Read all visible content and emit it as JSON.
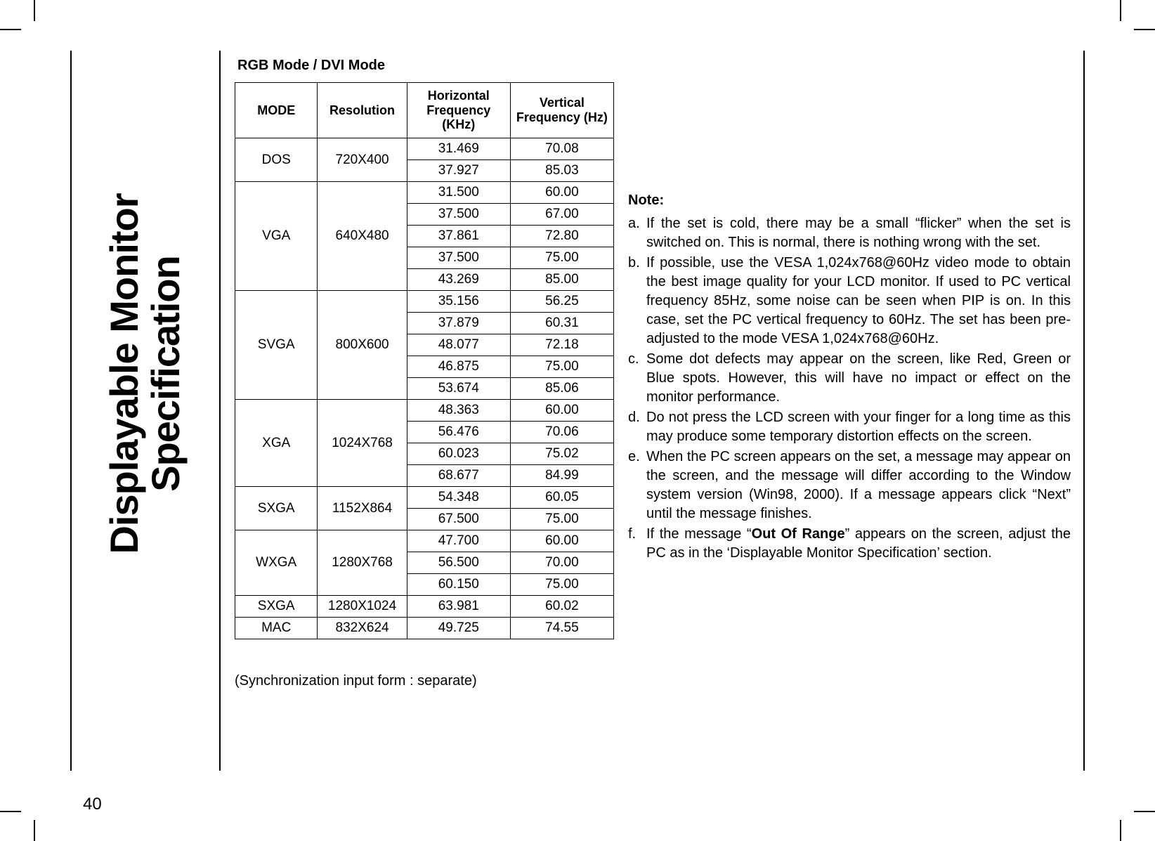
{
  "page_number": "40",
  "title_line1": "Displayable Monitor",
  "title_line2": "Specification",
  "table_section_title": "RGB Mode / DVI Mode",
  "table_headers": {
    "mode": "MODE",
    "resolution": "Resolution",
    "hfreq_line1": "Horizontal",
    "hfreq_line2": "Frequency (KHz)",
    "vfreq_line1": "Vertical",
    "vfreq_line2": "Frequency (Hz)"
  },
  "table_groups": [
    {
      "mode": "DOS",
      "resolution": "720X400",
      "rows": [
        {
          "hf": "31.469",
          "vf": "70.08"
        },
        {
          "hf": "37.927",
          "vf": "85.03"
        }
      ]
    },
    {
      "mode": "VGA",
      "resolution": "640X480",
      "rows": [
        {
          "hf": "31.500",
          "vf": "60.00"
        },
        {
          "hf": "37.500",
          "vf": "67.00"
        },
        {
          "hf": "37.861",
          "vf": "72.80"
        },
        {
          "hf": "37.500",
          "vf": "75.00"
        },
        {
          "hf": "43.269",
          "vf": "85.00"
        }
      ]
    },
    {
      "mode": "SVGA",
      "resolution": "800X600",
      "rows": [
        {
          "hf": "35.156",
          "vf": "56.25"
        },
        {
          "hf": "37.879",
          "vf": "60.31"
        },
        {
          "hf": "48.077",
          "vf": "72.18"
        },
        {
          "hf": "46.875",
          "vf": "75.00"
        },
        {
          "hf": "53.674",
          "vf": "85.06"
        }
      ]
    },
    {
      "mode": "XGA",
      "resolution": "1024X768",
      "rows": [
        {
          "hf": "48.363",
          "vf": "60.00"
        },
        {
          "hf": "56.476",
          "vf": "70.06"
        },
        {
          "hf": "60.023",
          "vf": "75.02"
        },
        {
          "hf": "68.677",
          "vf": "84.99"
        }
      ]
    },
    {
      "mode": "SXGA",
      "resolution": "1152X864",
      "rows": [
        {
          "hf": "54.348",
          "vf": "60.05"
        },
        {
          "hf": "67.500",
          "vf": "75.00"
        }
      ]
    },
    {
      "mode": "WXGA",
      "resolution": "1280X768",
      "rows": [
        {
          "hf": "47.700",
          "vf": "60.00"
        },
        {
          "hf": "56.500",
          "vf": "70.00"
        },
        {
          "hf": "60.150",
          "vf": "75.00"
        }
      ]
    },
    {
      "mode": "SXGA",
      "resolution": "1280X1024",
      "rows": [
        {
          "hf": "63.981",
          "vf": "60.02"
        }
      ]
    },
    {
      "mode": "MAC",
      "resolution": "832X624",
      "rows": [
        {
          "hf": "49.725",
          "vf": "74.55"
        }
      ]
    }
  ],
  "sync_note": "(Synchronization input form : separate)",
  "notes_title": "Note:",
  "notes": [
    {
      "label": "a.",
      "text": "If the set is cold, there may be a small “flicker” when the set is switched on. This is normal, there is nothing wrong with the set."
    },
    {
      "label": "b.",
      "text": "If possible, use the VESA 1,024x768@60Hz video mode to obtain the best image quality for your LCD monitor. If used to PC vertical frequency 85Hz, some noise can be seen when PIP is on. In this case, set the PC vertical frequency to 60Hz. The set has been pre-adjusted to the mode VESA 1,024x768@60Hz."
    },
    {
      "label": "c.",
      "text": "Some dot defects may appear on the screen, like Red, Green or Blue spots. However, this will have no impact or effect on the monitor performance."
    },
    {
      "label": "d.",
      "text": "Do not press the LCD screen with your finger for a long time as this may produce some temporary distortion effects on the screen."
    },
    {
      "label": "e.",
      "text": "When the PC screen appears on the set, a message may appear on the screen, and the message will differ according to the Window system version (Win98, 2000). If a message appears click “Next” until the message finishes."
    },
    {
      "label": "f.",
      "text_before": "If the message “",
      "bold": "Out Of Range",
      "text_after": "” appears on the screen, adjust the PC as in the ‘Displayable Monitor Specification’ section."
    }
  ]
}
